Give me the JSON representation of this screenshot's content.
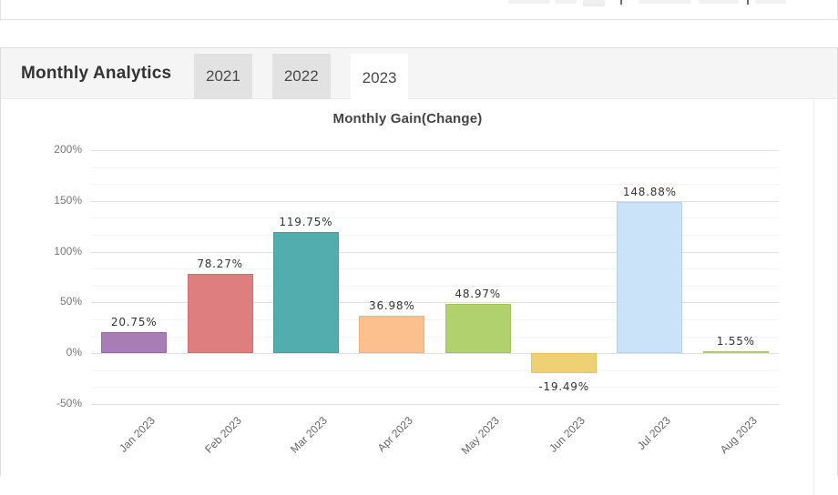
{
  "section": {
    "title": "Monthly Analytics",
    "tabs": [
      {
        "label": "2021",
        "active": false
      },
      {
        "label": "2022",
        "active": false
      },
      {
        "label": "2023",
        "active": true
      }
    ]
  },
  "chart_data": {
    "type": "bar",
    "title": "Monthly Gain(Change)",
    "categories": [
      "Jan 2023",
      "Feb 2023",
      "Mar 2023",
      "Apr 2023",
      "May 2023",
      "Jun 2023",
      "Jul 2023",
      "Aug 2023"
    ],
    "values": [
      20.75,
      78.27,
      119.75,
      36.98,
      48.97,
      -19.49,
      148.88,
      1.55
    ],
    "value_labels": [
      "20.75%",
      "78.27%",
      "119.75%",
      "36.98%",
      "48.97%",
      "-19.49%",
      "148.88%",
      "1.55%"
    ],
    "bar_colors": [
      "#a87cb5",
      "#de7e7e",
      "#52aeae",
      "#fcc08e",
      "#b0d16d",
      "#eed173",
      "#cbe3f8",
      "#bcd78d"
    ],
    "bar_border_colors": [
      "#9a6aa8",
      "#d66b6b",
      "#459f9f",
      "#f5b078",
      "#a2c55b",
      "#e5c35c",
      "#b3d3ef",
      "#abcc74"
    ],
    "xlabel": "",
    "ylabel": "",
    "ylim": [
      -50,
      200
    ],
    "yticks": [
      {
        "value": 200,
        "label": "200%"
      },
      {
        "value": 150,
        "label": "150%"
      },
      {
        "value": 100,
        "label": "100%"
      },
      {
        "value": 50,
        "label": "50%"
      },
      {
        "value": 0,
        "label": "0%"
      },
      {
        "value": -50,
        "label": "-50%"
      }
    ],
    "grid": "on",
    "legend": "none"
  }
}
